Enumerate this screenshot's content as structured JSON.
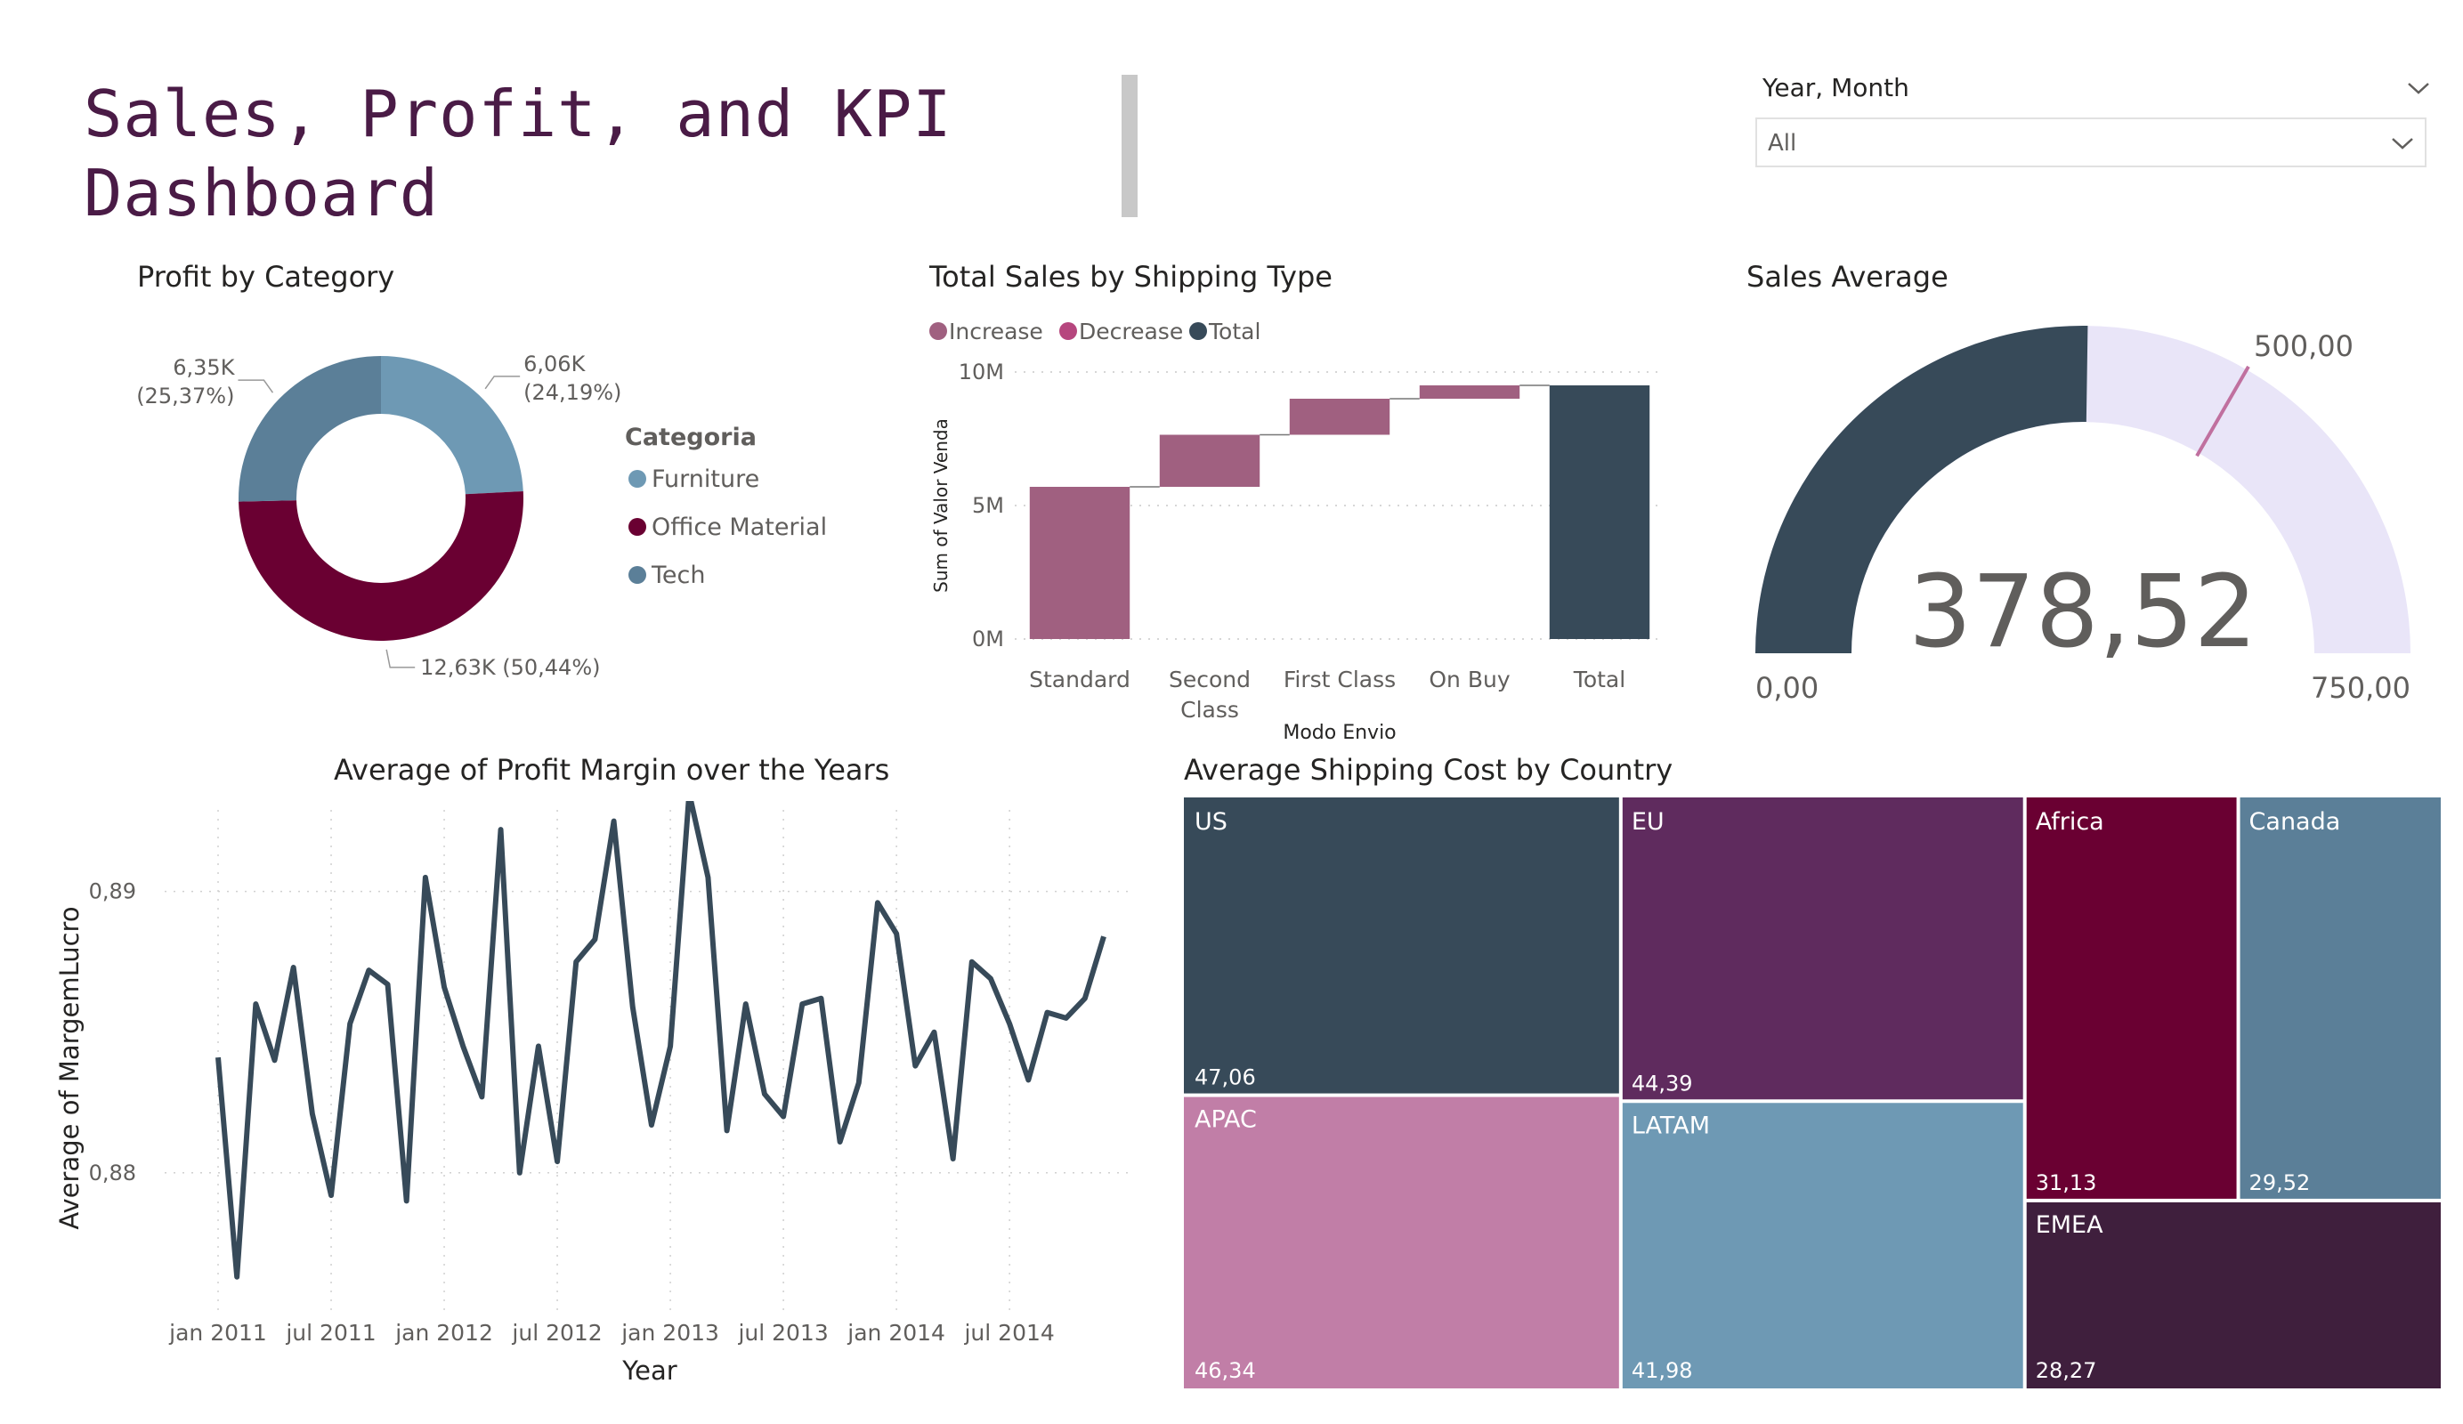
{
  "header": {
    "title_line1": "Sales, Profit, and KPI",
    "title_line2": "Dashboard"
  },
  "slicer": {
    "label": "Year, Month",
    "value": "All"
  },
  "colors": {
    "dark_slate": "#374a59",
    "plum": "#5f2b5e",
    "wine": "#6a0032",
    "mauve": "#a06080",
    "steel_blue": "#6e99b4",
    "slate_blue": "#5b7f98",
    "pink": "#c17ea7",
    "gauge_track": "#e9e5f8",
    "gauge_target": "#c0709f"
  },
  "chart_data": [
    {
      "id": "donut",
      "type": "pie",
      "title": "Profit by Category",
      "legend_title": "Categoria",
      "legend_position": "right",
      "categories": [
        "Furniture",
        "Office Material",
        "Tech"
      ],
      "values": [
        6.06,
        12.63,
        6.35
      ],
      "value_labels": [
        "6,06K",
        "12,63K",
        "6,35K"
      ],
      "percent_labels": [
        "(24,19%)",
        "(50,44%)",
        "(25,37%)"
      ],
      "colors": [
        "#6e99b4",
        "#6a0032",
        "#5b7f98"
      ]
    },
    {
      "id": "waterfall",
      "type": "bar",
      "subtype": "waterfall",
      "title": "Total Sales by Shipping Type",
      "xlabel": "Modo Envio",
      "ylabel": "Sum of Valor Venda",
      "legend": [
        "Increase",
        "Decrease",
        "Total"
      ],
      "legend_colors": [
        "#a06080",
        "#b6467e",
        "#374a59"
      ],
      "legend_position": "top-left",
      "categories": [
        "Standard",
        "Second Class",
        "First Class",
        "On Buy",
        "Total"
      ],
      "tick_labels": [
        [
          "Standard"
        ],
        [
          "Second",
          "Class"
        ],
        [
          "First Class"
        ],
        [
          "On Buy"
        ],
        [
          "Total"
        ]
      ],
      "values": [
        5.7,
        1.95,
        1.35,
        0.5,
        9.5
      ],
      "ylim": [
        0,
        10
      ],
      "yticks": [
        0,
        5,
        10
      ],
      "ytick_labels": [
        "0M",
        "5M",
        "10M"
      ],
      "grid": true
    },
    {
      "id": "gauge",
      "type": "gauge",
      "title": "Sales Average",
      "value": 378.52,
      "value_label": "378,52",
      "min": 0,
      "max": 750,
      "target": 500,
      "min_label": "0,00",
      "max_label": "750,00",
      "target_label": "500,00"
    },
    {
      "id": "line",
      "type": "line",
      "title": "Average of Profit Margin over the Years",
      "xlabel": "Year",
      "ylabel": "Average of MargemLucro",
      "x_ticks": [
        "jan 2011",
        "jul 2011",
        "jan 2012",
        "jul 2012",
        "jan 2013",
        "jul 2013",
        "jan 2014",
        "jul 2014"
      ],
      "y_ticks": [
        0.88,
        0.89
      ],
      "y_tick_labels": [
        "0,88",
        "0,89"
      ],
      "ylim": [
        0.8755,
        0.8929
      ],
      "x_start": "2011-01",
      "values": [
        0.8841,
        0.8763,
        0.886,
        0.884,
        0.8873,
        0.8821,
        0.8792,
        0.8853,
        0.8872,
        0.8867,
        0.879,
        0.8905,
        0.8866,
        0.8845,
        0.8827,
        0.8922,
        0.88,
        0.8845,
        0.8804,
        0.8875,
        0.8883,
        0.8925,
        0.8859,
        0.8817,
        0.8845,
        0.8935,
        0.8905,
        0.8815,
        0.886,
        0.8828,
        0.882,
        0.886,
        0.8862,
        0.8811,
        0.8832,
        0.8896,
        0.8885,
        0.8838,
        0.885,
        0.8805,
        0.8875,
        0.8869,
        0.8853,
        0.8833,
        0.8857,
        0.8855,
        0.8862,
        0.8884
      ],
      "grid": true
    },
    {
      "id": "treemap",
      "type": "treemap",
      "title": "Average Shipping Cost by Country",
      "items": [
        {
          "name": "US",
          "value": 47.06,
          "label": "47,06",
          "color": "#374a59"
        },
        {
          "name": "APAC",
          "value": 46.34,
          "label": "46,34",
          "color": "#c17ea7"
        },
        {
          "name": "EU",
          "value": 44.39,
          "label": "44,39",
          "color": "#5f2b5e"
        },
        {
          "name": "LATAM",
          "value": 41.98,
          "label": "41,98",
          "color": "#6e99b4"
        },
        {
          "name": "Africa",
          "value": 31.13,
          "label": "31,13",
          "color": "#6a0032"
        },
        {
          "name": "Canada",
          "value": 29.52,
          "label": "29,52",
          "color": "#5b7f98"
        },
        {
          "name": "EMEA",
          "value": 28.27,
          "label": "28,27",
          "color": "#3f1f3d"
        }
      ]
    }
  ]
}
